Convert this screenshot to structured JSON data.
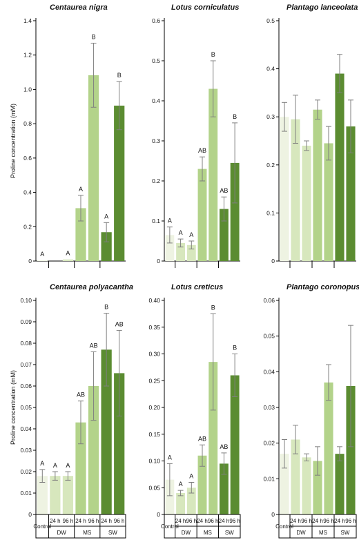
{
  "figure": {
    "y_axis_label": "Proline concentration (mM)",
    "groups": [
      "Control",
      "DW",
      "MS",
      "SW"
    ],
    "times": [
      "24 h",
      "96 h"
    ],
    "colors": {
      "Control": "#eef3e2",
      "DW": "#d7e7bd",
      "MS": "#b3d38a",
      "SW": "#5b8c31",
      "error": "#7f7f7f",
      "axis": "#000000"
    }
  },
  "chart_data": [
    {
      "type": "bar",
      "title": "Centaurea nigra",
      "ylabel": "Proline concentration (mM)",
      "ylim": [
        0,
        1.5
      ],
      "yticks": [
        "0",
        "0.2",
        "0.4",
        "0.6",
        "0.8",
        "1.0",
        "1.2",
        "1.4"
      ],
      "categories": [
        "Control",
        "DW 24 h",
        "DW 96 h",
        "MS 24 h",
        "MS 96 h",
        "SW 24 h",
        "SW 96 h"
      ],
      "values": [
        0.005,
        0.0,
        0.01,
        0.33,
        1.16,
        0.18,
        0.97
      ],
      "errors": [
        0.0,
        0.0,
        0.0,
        0.08,
        0.2,
        0.06,
        0.15
      ],
      "letters": [
        "A",
        "",
        "A",
        "A",
        "B",
        "A",
        "B"
      ],
      "show_group_labels": false
    },
    {
      "type": "bar",
      "title": "Lotus corniculatus",
      "ylabel": "",
      "ylim": [
        0,
        0.6
      ],
      "yticks": [
        "0",
        "0.1",
        "0.2",
        "0.3",
        "0.4",
        "0.5",
        "0.6"
      ],
      "categories": [
        "Control",
        "DW 24 h",
        "DW 96 h",
        "MS 24 h",
        "MS 96 h",
        "SW 24 h",
        "SW 96 h"
      ],
      "values": [
        0.065,
        0.045,
        0.04,
        0.23,
        0.43,
        0.13,
        0.245
      ],
      "errors": [
        0.02,
        0.01,
        0.01,
        0.03,
        0.07,
        0.03,
        0.1
      ],
      "letters": [
        "A",
        "A",
        "A",
        "AB",
        "B",
        "AB",
        "B"
      ],
      "show_group_labels": false
    },
    {
      "type": "bar",
      "title": "Plantago lanceolata",
      "ylabel": "",
      "ylim": [
        0,
        0.5
      ],
      "yticks": [
        "0",
        "0.1",
        "0.2",
        "0.3",
        "0.4",
        "0.5"
      ],
      "categories": [
        "Control",
        "DW 24 h",
        "DW 96 h",
        "MS 24 h",
        "MS 96 h",
        "SW 24 h",
        "SW 96 h"
      ],
      "values": [
        0.3,
        0.295,
        0.24,
        0.315,
        0.245,
        0.39,
        0.28
      ],
      "errors": [
        0.03,
        0.05,
        0.01,
        0.02,
        0.035,
        0.04,
        0.055
      ],
      "letters": [
        "",
        "",
        "",
        "",
        "",
        "",
        ""
      ],
      "show_group_labels": false
    },
    {
      "type": "bar",
      "title": "Centaurea polyacantha",
      "ylabel": "Proline concentration (mM)",
      "ylim": [
        0,
        0.1
      ],
      "yticks": [
        "0",
        "0.01",
        "0.02",
        "0.03",
        "0.04",
        "0.05",
        "0.06",
        "0.07",
        "0.08",
        "0.09",
        "0.10"
      ],
      "categories": [
        "Control",
        "DW 24 h",
        "DW 96 h",
        "MS 24 h",
        "MS 96 h",
        "SW 24 h",
        "SW 96 h"
      ],
      "values": [
        0.018,
        0.018,
        0.018,
        0.043,
        0.06,
        0.077,
        0.066
      ],
      "errors": [
        0.003,
        0.002,
        0.002,
        0.01,
        0.016,
        0.017,
        0.02
      ],
      "letters": [
        "A",
        "A",
        "A",
        "AB",
        "AB",
        "B",
        "AB"
      ],
      "show_group_labels": true
    },
    {
      "type": "bar",
      "title": "Lotus creticus",
      "ylabel": "",
      "ylim": [
        0,
        0.4
      ],
      "yticks": [
        "0",
        "0.05",
        "0.10",
        "0.15",
        "0.20",
        "0.25",
        "0.30",
        "0.35",
        "0.40"
      ],
      "categories": [
        "Control",
        "DW 24 h",
        "DW 96 h",
        "MS 24 h",
        "MS 96 h",
        "SW 24 h",
        "SW 96 h"
      ],
      "values": [
        0.065,
        0.04,
        0.05,
        0.11,
        0.285,
        0.095,
        0.26
      ],
      "errors": [
        0.03,
        0.005,
        0.01,
        0.02,
        0.09,
        0.02,
        0.04
      ],
      "letters": [
        "A",
        "A",
        "A",
        "AB",
        "B",
        "AB",
        "B"
      ],
      "show_group_labels": true
    },
    {
      "type": "bar",
      "title": "Plantago coronopus",
      "ylabel": "",
      "ylim": [
        0,
        0.06
      ],
      "yticks": [
        "0",
        "0.01",
        "0.02",
        "0.03",
        "0.04",
        "0.05",
        "0.06"
      ],
      "categories": [
        "Control",
        "DW 24 h",
        "DW 96 h",
        "MS 24 h",
        "MS 96 h",
        "SW 24 h",
        "SW 96 h"
      ],
      "values": [
        0.017,
        0.021,
        0.016,
        0.015,
        0.037,
        0.017,
        0.036
      ],
      "errors": [
        0.004,
        0.004,
        0.001,
        0.004,
        0.005,
        0.002,
        0.017
      ],
      "letters": [
        "",
        "",
        "",
        "",
        "",
        "",
        ""
      ],
      "show_group_labels": true
    }
  ]
}
